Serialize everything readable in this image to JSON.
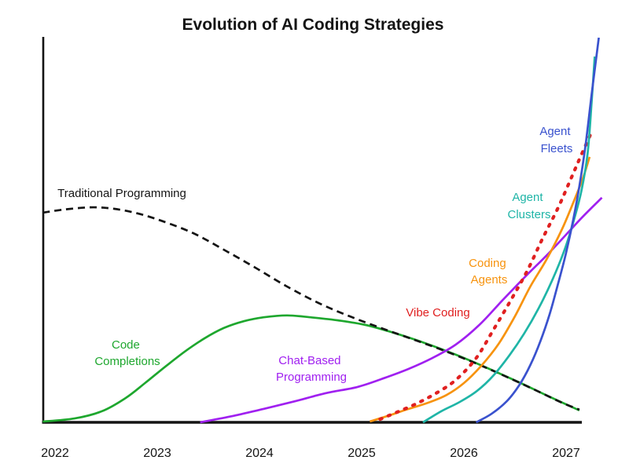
{
  "title": "Evolution of AI Coding Strategies",
  "chart_data": {
    "type": "line",
    "title": "Evolution of AI Coding Strategies",
    "xlabel": "",
    "ylabel": "",
    "x_ticks": [
      "2022",
      "2023",
      "2024",
      "2025",
      "2026",
      "2027"
    ],
    "x_range": [
      2021.85,
      2027.4
    ],
    "y_range": [
      0,
      102
    ],
    "y_axis_unlabeled": true,
    "grid": false,
    "legend": "inline-colored-labels",
    "units": "relative adoption (unlabeled y axis, 0-100 estimated)",
    "series": [
      {
        "name": "Code Completions",
        "label_lines": [
          "Code",
          "Completions"
        ],
        "color": "#1EA72E",
        "style": "solid",
        "points": [
          [
            2021.88,
            0.2
          ],
          [
            2022.19,
            1.0
          ],
          [
            2022.46,
            2.9
          ],
          [
            2022.69,
            6.3
          ],
          [
            2022.88,
            10.2
          ],
          [
            2023.08,
            14.5
          ],
          [
            2023.27,
            18.4
          ],
          [
            2023.46,
            21.8
          ],
          [
            2023.65,
            24.5
          ],
          [
            2023.85,
            26.3
          ],
          [
            2024.04,
            27.3
          ],
          [
            2024.27,
            27.8
          ],
          [
            2024.5,
            27.3
          ],
          [
            2024.77,
            26.5
          ],
          [
            2025.04,
            25.3
          ],
          [
            2025.31,
            23.3
          ],
          [
            2025.62,
            20.6
          ],
          [
            2025.92,
            17.6
          ],
          [
            2026.23,
            14.1
          ],
          [
            2026.54,
            10.4
          ],
          [
            2026.85,
            6.5
          ],
          [
            2027.13,
            3.1
          ]
        ]
      },
      {
        "name": "Traditional Programming",
        "label_lines": [
          "Traditional Programming"
        ],
        "color": "#141414",
        "style": "dashed",
        "points": [
          [
            2021.88,
            54.5
          ],
          [
            2022.08,
            55.3
          ],
          [
            2022.35,
            55.9
          ],
          [
            2022.58,
            55.5
          ],
          [
            2022.81,
            54.3
          ],
          [
            2023.04,
            52.4
          ],
          [
            2023.35,
            49.2
          ],
          [
            2023.65,
            44.9
          ],
          [
            2023.96,
            40.2
          ],
          [
            2024.27,
            35.3
          ],
          [
            2024.58,
            31.0
          ],
          [
            2024.88,
            27.6
          ],
          [
            2025.19,
            24.5
          ],
          [
            2025.5,
            21.6
          ],
          [
            2025.81,
            18.6
          ],
          [
            2026.12,
            15.3
          ],
          [
            2026.42,
            11.8
          ],
          [
            2026.73,
            8.0
          ],
          [
            2026.96,
            5.1
          ],
          [
            2027.13,
            3.3
          ]
        ]
      },
      {
        "name": "Chat-Based Programming",
        "label_lines": [
          "Chat-Based",
          "Programming"
        ],
        "color": "#A020F0",
        "style": "solid",
        "points": [
          [
            2023.42,
            0.0
          ],
          [
            2023.73,
            1.6
          ],
          [
            2024.04,
            3.5
          ],
          [
            2024.35,
            5.5
          ],
          [
            2024.65,
            7.6
          ],
          [
            2024.96,
            9.2
          ],
          [
            2025.23,
            11.6
          ],
          [
            2025.46,
            13.9
          ],
          [
            2025.69,
            16.7
          ],
          [
            2025.92,
            20.2
          ],
          [
            2026.15,
            25.3
          ],
          [
            2026.38,
            31.8
          ],
          [
            2026.62,
            38.4
          ],
          [
            2026.85,
            44.5
          ],
          [
            2027.15,
            53.1
          ],
          [
            2027.35,
            58.4
          ]
        ]
      },
      {
        "name": "Coding Agents",
        "label_lines": [
          "Coding",
          "Agents"
        ],
        "color": "#F7930E",
        "style": "solid",
        "points": [
          [
            2025.08,
            0.2
          ],
          [
            2025.27,
            1.8
          ],
          [
            2025.46,
            3.5
          ],
          [
            2025.65,
            5.1
          ],
          [
            2025.83,
            7.1
          ],
          [
            2026.0,
            10.2
          ],
          [
            2026.17,
            14.7
          ],
          [
            2026.34,
            20.4
          ],
          [
            2026.5,
            27.6
          ],
          [
            2026.65,
            35.3
          ],
          [
            2026.81,
            42.4
          ],
          [
            2026.96,
            50.2
          ],
          [
            2027.09,
            58.4
          ],
          [
            2027.17,
            63.9
          ],
          [
            2027.23,
            69.0
          ]
        ]
      },
      {
        "name": "Vibe Coding",
        "label_lines": [
          "Vibe Coding"
        ],
        "color": "#E02020",
        "style": "dotted",
        "points": [
          [
            2025.18,
            0.8
          ],
          [
            2025.35,
            2.7
          ],
          [
            2025.54,
            4.9
          ],
          [
            2025.73,
            7.6
          ],
          [
            2025.92,
            11.0
          ],
          [
            2026.12,
            16.7
          ],
          [
            2026.29,
            24.1
          ],
          [
            2026.46,
            31.8
          ],
          [
            2026.62,
            39.4
          ],
          [
            2026.77,
            47.8
          ],
          [
            2026.92,
            55.7
          ],
          [
            2027.04,
            62.9
          ],
          [
            2027.14,
            69.0
          ],
          [
            2027.25,
            75.5
          ]
        ]
      },
      {
        "name": "Agent Clusters",
        "label_lines": [
          "Agent",
          "Clusters"
        ],
        "color": "#1FB5A7",
        "style": "solid",
        "points": [
          [
            2025.6,
            0.0
          ],
          [
            2025.78,
            2.9
          ],
          [
            2025.96,
            5.3
          ],
          [
            2026.13,
            8.2
          ],
          [
            2026.29,
            12.2
          ],
          [
            2026.45,
            17.6
          ],
          [
            2026.59,
            23.1
          ],
          [
            2026.73,
            29.6
          ],
          [
            2026.86,
            36.7
          ],
          [
            2026.98,
            44.5
          ],
          [
            2027.07,
            52.0
          ],
          [
            2027.15,
            60.2
          ],
          [
            2027.21,
            69.8
          ],
          [
            2027.25,
            83.3
          ],
          [
            2027.28,
            95.1
          ]
        ]
      },
      {
        "name": "Agent Fleets",
        "label_lines": [
          "Agent",
          "Fleets"
        ],
        "color": "#3A52CE",
        "style": "solid",
        "points": [
          [
            2026.12,
            0.0
          ],
          [
            2026.27,
            2.2
          ],
          [
            2026.42,
            5.5
          ],
          [
            2026.54,
            9.6
          ],
          [
            2026.65,
            14.9
          ],
          [
            2026.75,
            21.2
          ],
          [
            2026.84,
            28.2
          ],
          [
            2026.92,
            35.9
          ],
          [
            2027.0,
            44.1
          ],
          [
            2027.07,
            52.7
          ],
          [
            2027.13,
            61.4
          ],
          [
            2027.19,
            72.0
          ],
          [
            2027.25,
            85.3
          ],
          [
            2027.32,
            100.0
          ]
        ]
      }
    ]
  }
}
